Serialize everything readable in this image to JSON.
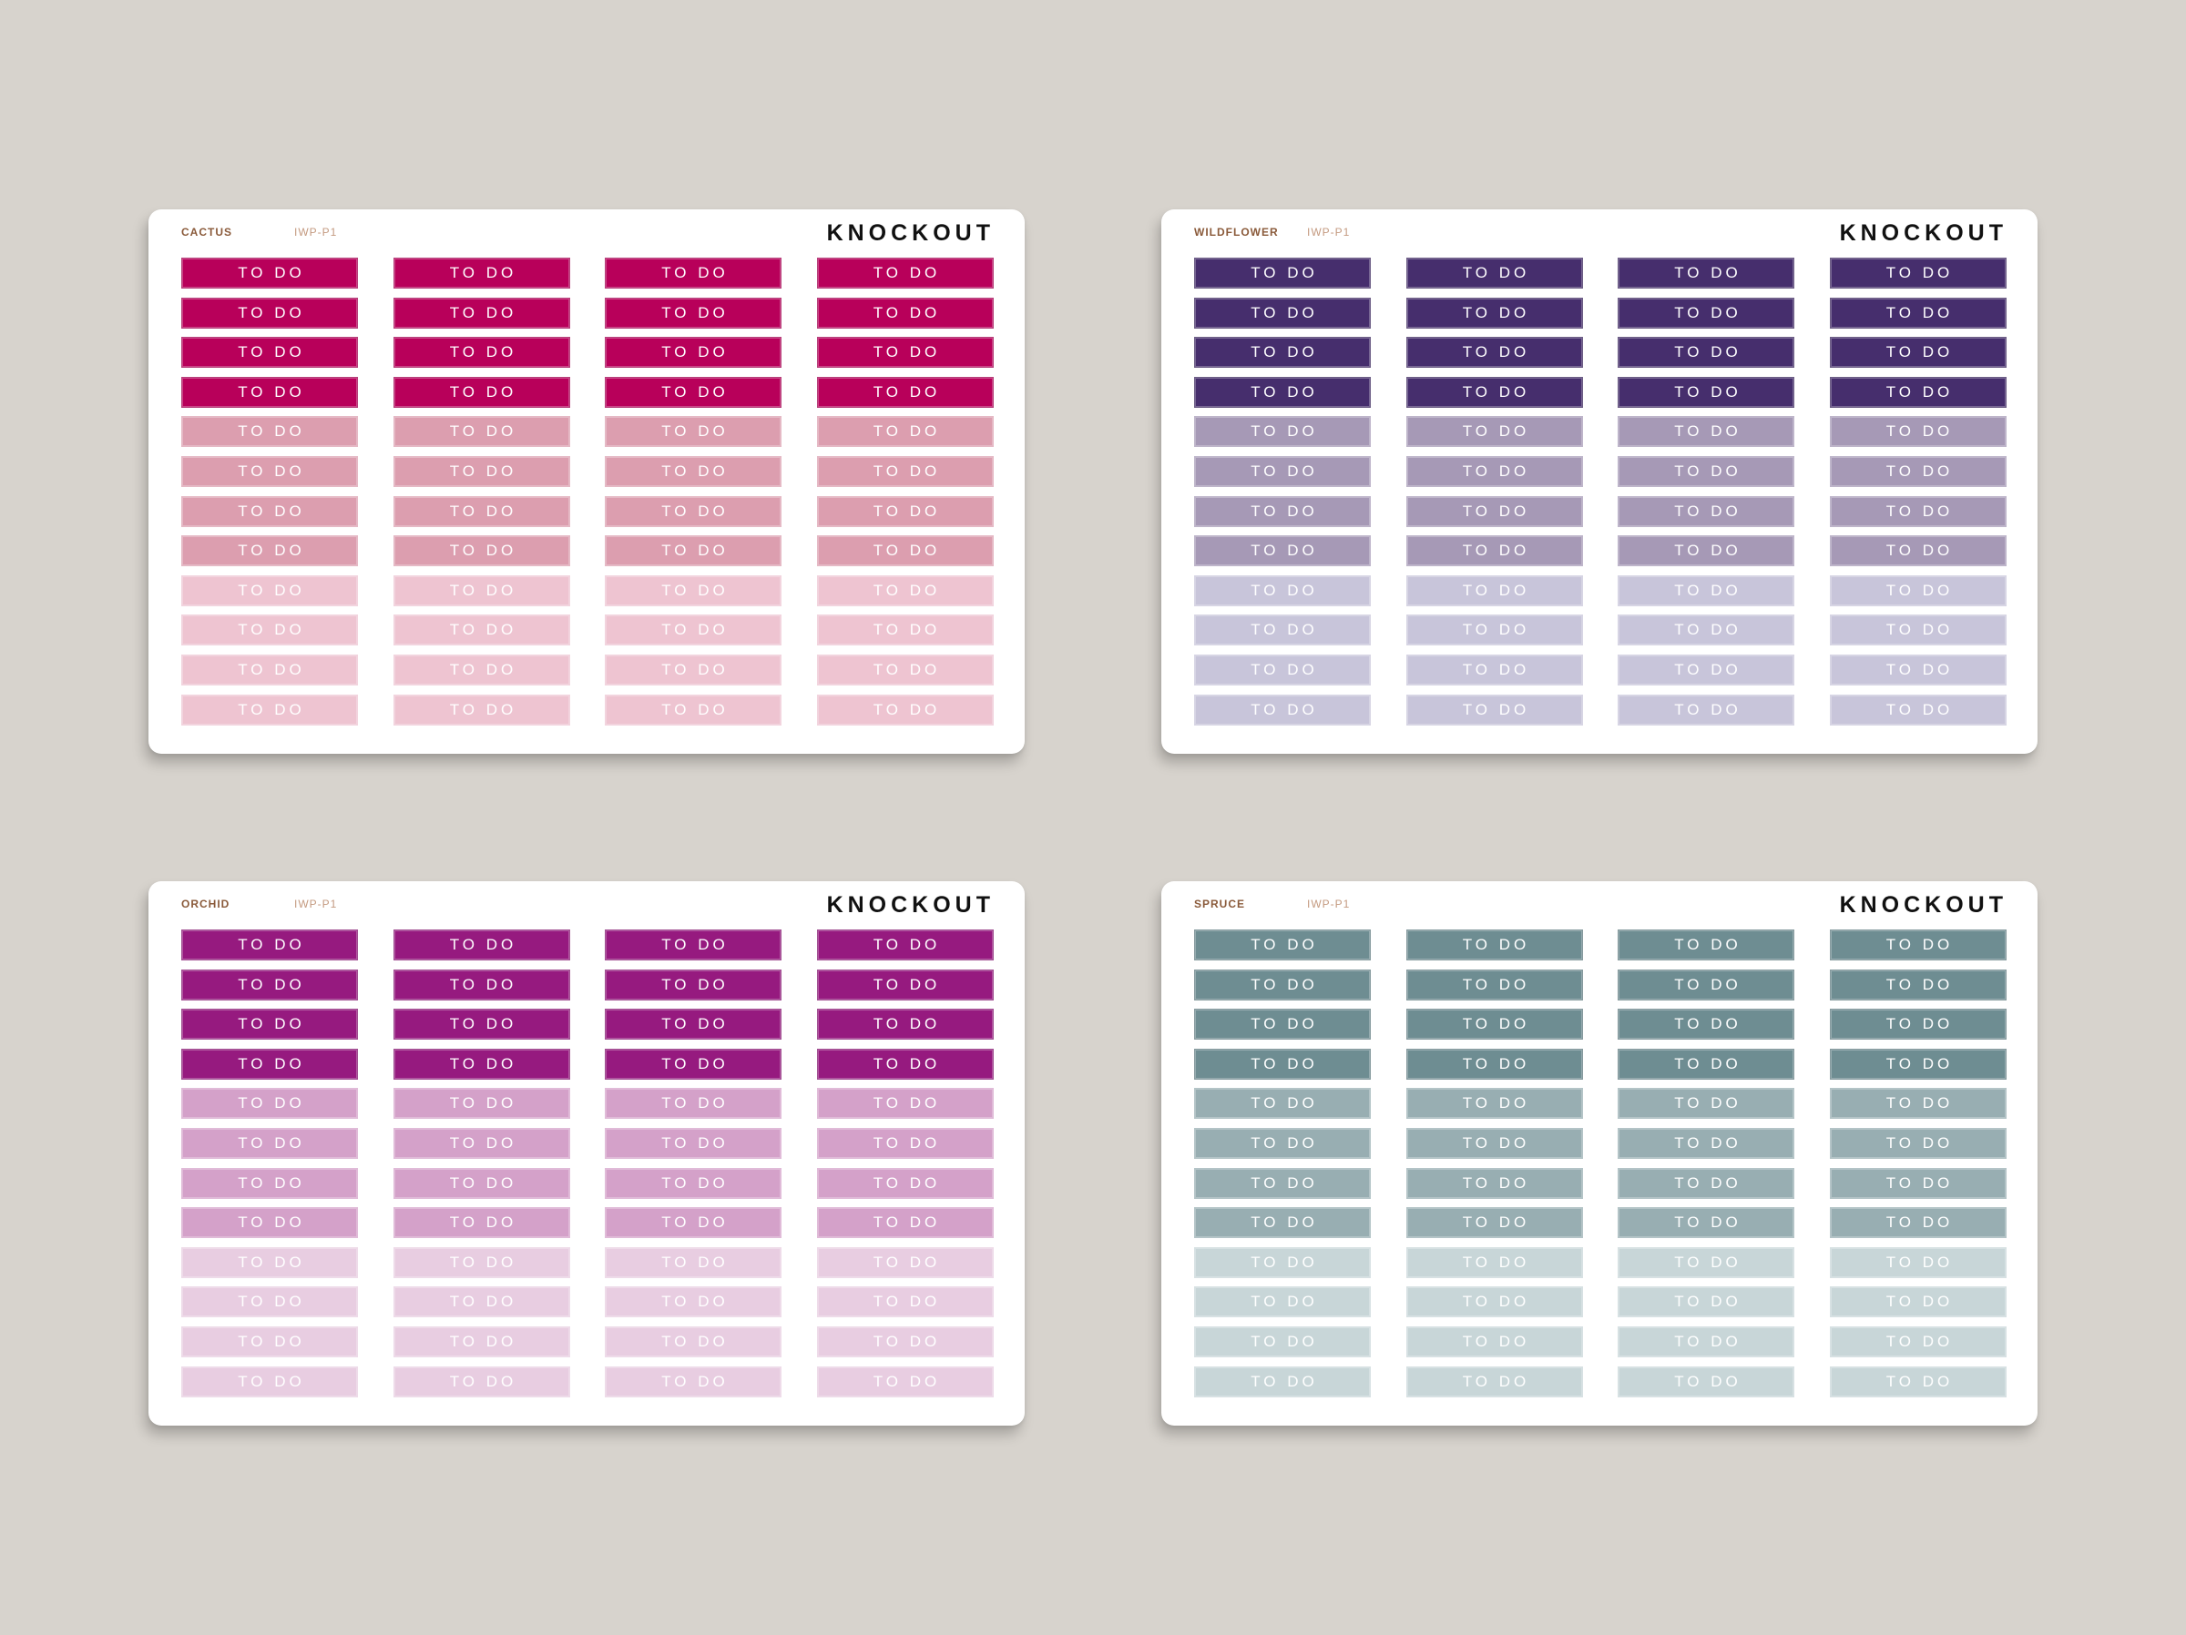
{
  "brand": "KNOCKOUT",
  "label_text": "TO DO",
  "sheets": [
    {
      "name": "CACTUS",
      "code": "IWP-P1",
      "shades": [
        "#b8005a",
        "#dc9eaf",
        "#eec4d1"
      ]
    },
    {
      "name": "WILDFLOWER",
      "code": "IWP-P1",
      "shades": [
        "#462e6d",
        "#a699b6",
        "#c8c5da"
      ]
    },
    {
      "name": "ORCHID",
      "code": "IWP-P1",
      "shades": [
        "#961a7f",
        "#d4a1c9",
        "#e8cde1"
      ]
    },
    {
      "name": "SPRUCE",
      "code": "IWP-P1",
      "shades": [
        "#6e8d92",
        "#98aeb2",
        "#c8d6d8"
      ]
    }
  ],
  "rows_per_shade": 4,
  "columns": 4
}
